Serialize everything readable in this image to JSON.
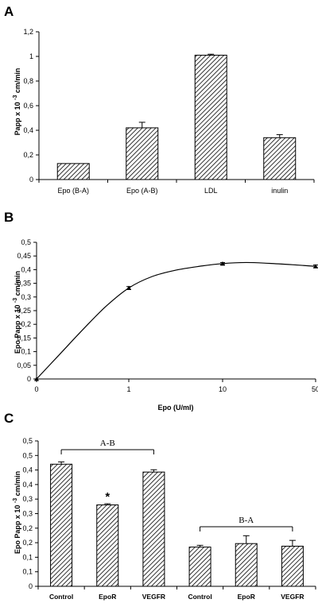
{
  "panels": {
    "A": {
      "label": "A"
    },
    "B": {
      "label": "B"
    },
    "C": {
      "label": "C"
    }
  },
  "chart_data": [
    {
      "id": "A",
      "type": "bar",
      "ylabel": "Papp x 10 -3 cm/min",
      "xlabel": "",
      "ylim": [
        0,
        1.2
      ],
      "yticks": [
        "0",
        "0,2",
        "0,4",
        "0,6",
        "0,8",
        "1",
        "1,2"
      ],
      "categories": [
        "Epo (B-A)",
        "Epo (A-B)",
        "LDL",
        "inulin"
      ],
      "values": [
        0.13,
        0.42,
        1.01,
        0.34
      ],
      "errors": [
        0.0,
        0.045,
        0.008,
        0.025
      ],
      "fill": "hatched"
    },
    {
      "id": "B",
      "type": "line",
      "ylabel": "Epo Papp x 10 -3 cm/min",
      "xlabel": "Epo (U/ml)",
      "xticks": [
        "0",
        "1",
        "10",
        "50"
      ],
      "ylim": [
        0,
        0.5
      ],
      "yticks": [
        "0",
        "0,05",
        "0,1",
        "0,15",
        "0,2",
        "0,25",
        "0,3",
        "0,35",
        "0,4",
        "0,45",
        "0,5"
      ],
      "points": [
        {
          "x": 0,
          "y": 0.0,
          "err": 0.0
        },
        {
          "x": 1,
          "y": 0.333,
          "err": 0.005
        },
        {
          "x": 10,
          "y": 0.422,
          "err": 0.004
        },
        {
          "x": 50,
          "y": 0.412,
          "err": 0.005
        }
      ],
      "curve": [
        {
          "x": 0,
          "y": 0.0
        },
        {
          "x": 0.25,
          "y": 0.09
        },
        {
          "x": 0.5,
          "y": 0.18
        },
        {
          "x": 0.75,
          "y": 0.265
        },
        {
          "x": 1,
          "y": 0.333
        },
        {
          "x": 1.25,
          "y": 0.375
        },
        {
          "x": 1.5,
          "y": 0.398
        },
        {
          "x": 1.75,
          "y": 0.412
        },
        {
          "x": 2,
          "y": 0.422
        },
        {
          "x": 2.25,
          "y": 0.426
        },
        {
          "x": 2.5,
          "y": 0.423
        },
        {
          "x": 2.75,
          "y": 0.418
        },
        {
          "x": 3,
          "y": 0.412
        }
      ]
    },
    {
      "id": "C",
      "type": "bar",
      "ylabel": "Epo Papp x 10 -3 cm/min",
      "xlabel": "",
      "ylim": [
        0,
        0.5
      ],
      "yticks": [
        "0",
        "0,1",
        "0,1",
        "0,2",
        "0,2",
        "0,3",
        "0,3",
        "0,4",
        "0,4",
        "0,5",
        "0,5"
      ],
      "categories": [
        "Control",
        "EpoR",
        "VEGFR",
        "Control",
        "EpoR",
        "VEGFR"
      ],
      "values": [
        0.42,
        0.28,
        0.393,
        0.135,
        0.147,
        0.138
      ],
      "errors": [
        0.008,
        0.004,
        0.008,
        0.006,
        0.027,
        0.02
      ],
      "groups": [
        {
          "label": "A-B",
          "from": 0,
          "to": 2
        },
        {
          "label": "B-A",
          "from": 3,
          "to": 5
        }
      ],
      "annotations": [
        {
          "text": "*",
          "bar": 1
        }
      ],
      "fill": "hatched"
    }
  ]
}
